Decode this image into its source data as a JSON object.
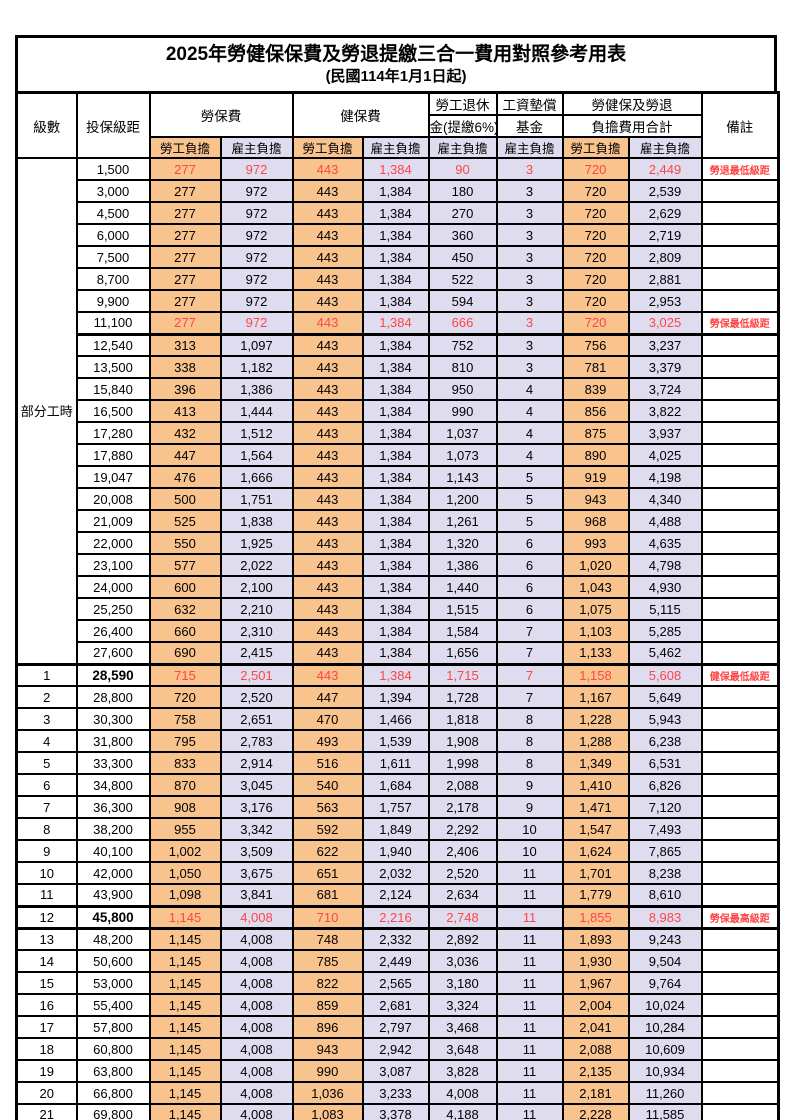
{
  "page": {
    "title": "2025年勞健保保費及勞退提繳三合一費用對照參考用表",
    "subtitle": "(民國114年1月1日起)"
  },
  "colors": {
    "employee_bg": "#F9C38D",
    "employer_bg": "#E0DCF0",
    "red_text": "#FF4545",
    "border_color": "#000000"
  },
  "header": {
    "level": "級數",
    "bracket": "投保級距",
    "labor_insurance": "勞保費",
    "health_insurance": "健保費",
    "pension_line1": "勞工退休",
    "pension_line2": "金(提繳6%)",
    "fund_line1": "工資墊償",
    "fund_line2": "基金",
    "total_line1": "勞健保及勞退",
    "total_line2": "負擔費用合計",
    "note": "備註",
    "employee": "勞工負擔",
    "employer": "雇主負擔"
  },
  "part_time": {
    "label": "部分工時",
    "span": 23
  },
  "rows": [
    {
      "level": "",
      "bracket": "1,500",
      "v": [
        "277",
        "972",
        "443",
        "1,384",
        "90",
        "3",
        "720",
        "2,449"
      ],
      "note": "勞退最低級距",
      "red": true,
      "bold": false
    },
    {
      "level": "",
      "bracket": "3,000",
      "v": [
        "277",
        "972",
        "443",
        "1,384",
        "180",
        "3",
        "720",
        "2,539"
      ],
      "note": "",
      "red": false,
      "bold": false
    },
    {
      "level": "",
      "bracket": "4,500",
      "v": [
        "277",
        "972",
        "443",
        "1,384",
        "270",
        "3",
        "720",
        "2,629"
      ],
      "note": "",
      "red": false,
      "bold": false
    },
    {
      "level": "",
      "bracket": "6,000",
      "v": [
        "277",
        "972",
        "443",
        "1,384",
        "360",
        "3",
        "720",
        "2,719"
      ],
      "note": "",
      "red": false,
      "bold": false
    },
    {
      "level": "",
      "bracket": "7,500",
      "v": [
        "277",
        "972",
        "443",
        "1,384",
        "450",
        "3",
        "720",
        "2,809"
      ],
      "note": "",
      "red": false,
      "bold": false
    },
    {
      "level": "",
      "bracket": "8,700",
      "v": [
        "277",
        "972",
        "443",
        "1,384",
        "522",
        "3",
        "720",
        "2,881"
      ],
      "note": "",
      "red": false,
      "bold": false
    },
    {
      "level": "",
      "bracket": "9,900",
      "v": [
        "277",
        "972",
        "443",
        "1,384",
        "594",
        "3",
        "720",
        "2,953"
      ],
      "note": "",
      "red": false,
      "bold": false
    },
    {
      "level": "",
      "bracket": "11,100",
      "v": [
        "277",
        "972",
        "443",
        "1,384",
        "666",
        "3",
        "720",
        "3,025"
      ],
      "note": "勞保最低級距",
      "red": true,
      "bold": false
    },
    {
      "level": "",
      "bracket": "12,540",
      "v": [
        "313",
        "1,097",
        "443",
        "1,384",
        "752",
        "3",
        "756",
        "3,237"
      ],
      "note": "",
      "red": false,
      "bold": false
    },
    {
      "level": "",
      "bracket": "13,500",
      "v": [
        "338",
        "1,182",
        "443",
        "1,384",
        "810",
        "3",
        "781",
        "3,379"
      ],
      "note": "",
      "red": false,
      "bold": false
    },
    {
      "level": "",
      "bracket": "15,840",
      "v": [
        "396",
        "1,386",
        "443",
        "1,384",
        "950",
        "4",
        "839",
        "3,724"
      ],
      "note": "",
      "red": false,
      "bold": false
    },
    {
      "level": "",
      "bracket": "16,500",
      "v": [
        "413",
        "1,444",
        "443",
        "1,384",
        "990",
        "4",
        "856",
        "3,822"
      ],
      "note": "",
      "red": false,
      "bold": false
    },
    {
      "level": "",
      "bracket": "17,280",
      "v": [
        "432",
        "1,512",
        "443",
        "1,384",
        "1,037",
        "4",
        "875",
        "3,937"
      ],
      "note": "",
      "red": false,
      "bold": false
    },
    {
      "level": "",
      "bracket": "17,880",
      "v": [
        "447",
        "1,564",
        "443",
        "1,384",
        "1,073",
        "4",
        "890",
        "4,025"
      ],
      "note": "",
      "red": false,
      "bold": false
    },
    {
      "level": "",
      "bracket": "19,047",
      "v": [
        "476",
        "1,666",
        "443",
        "1,384",
        "1,143",
        "5",
        "919",
        "4,198"
      ],
      "note": "",
      "red": false,
      "bold": false
    },
    {
      "level": "",
      "bracket": "20,008",
      "v": [
        "500",
        "1,751",
        "443",
        "1,384",
        "1,200",
        "5",
        "943",
        "4,340"
      ],
      "note": "",
      "red": false,
      "bold": false
    },
    {
      "level": "",
      "bracket": "21,009",
      "v": [
        "525",
        "1,838",
        "443",
        "1,384",
        "1,261",
        "5",
        "968",
        "4,488"
      ],
      "note": "",
      "red": false,
      "bold": false
    },
    {
      "level": "",
      "bracket": "22,000",
      "v": [
        "550",
        "1,925",
        "443",
        "1,384",
        "1,320",
        "6",
        "993",
        "4,635"
      ],
      "note": "",
      "red": false,
      "bold": false
    },
    {
      "level": "",
      "bracket": "23,100",
      "v": [
        "577",
        "2,022",
        "443",
        "1,384",
        "1,386",
        "6",
        "1,020",
        "4,798"
      ],
      "note": "",
      "red": false,
      "bold": false
    },
    {
      "level": "",
      "bracket": "24,000",
      "v": [
        "600",
        "2,100",
        "443",
        "1,384",
        "1,440",
        "6",
        "1,043",
        "4,930"
      ],
      "note": "",
      "red": false,
      "bold": false
    },
    {
      "level": "",
      "bracket": "25,250",
      "v": [
        "632",
        "2,210",
        "443",
        "1,384",
        "1,515",
        "6",
        "1,075",
        "5,115"
      ],
      "note": "",
      "red": false,
      "bold": false
    },
    {
      "level": "",
      "bracket": "26,400",
      "v": [
        "660",
        "2,310",
        "443",
        "1,384",
        "1,584",
        "7",
        "1,103",
        "5,285"
      ],
      "note": "",
      "red": false,
      "bold": false
    },
    {
      "level": "",
      "bracket": "27,600",
      "v": [
        "690",
        "2,415",
        "443",
        "1,384",
        "1,656",
        "7",
        "1,133",
        "5,462"
      ],
      "note": "",
      "red": false,
      "bold": false
    },
    {
      "level": "1",
      "bracket": "28,590",
      "v": [
        "715",
        "2,501",
        "443",
        "1,384",
        "1,715",
        "7",
        "1,158",
        "5,608"
      ],
      "note": "健保最低級距",
      "red": true,
      "bold": true
    },
    {
      "level": "2",
      "bracket": "28,800",
      "v": [
        "720",
        "2,520",
        "447",
        "1,394",
        "1,728",
        "7",
        "1,167",
        "5,649"
      ],
      "note": "",
      "red": false,
      "bold": false
    },
    {
      "level": "3",
      "bracket": "30,300",
      "v": [
        "758",
        "2,651",
        "470",
        "1,466",
        "1,818",
        "8",
        "1,228",
        "5,943"
      ],
      "note": "",
      "red": false,
      "bold": false
    },
    {
      "level": "4",
      "bracket": "31,800",
      "v": [
        "795",
        "2,783",
        "493",
        "1,539",
        "1,908",
        "8",
        "1,288",
        "6,238"
      ],
      "note": "",
      "red": false,
      "bold": false
    },
    {
      "level": "5",
      "bracket": "33,300",
      "v": [
        "833",
        "2,914",
        "516",
        "1,611",
        "1,998",
        "8",
        "1,349",
        "6,531"
      ],
      "note": "",
      "red": false,
      "bold": false
    },
    {
      "level": "6",
      "bracket": "34,800",
      "v": [
        "870",
        "3,045",
        "540",
        "1,684",
        "2,088",
        "9",
        "1,410",
        "6,826"
      ],
      "note": "",
      "red": false,
      "bold": false
    },
    {
      "level": "7",
      "bracket": "36,300",
      "v": [
        "908",
        "3,176",
        "563",
        "1,757",
        "2,178",
        "9",
        "1,471",
        "7,120"
      ],
      "note": "",
      "red": false,
      "bold": false
    },
    {
      "level": "8",
      "bracket": "38,200",
      "v": [
        "955",
        "3,342",
        "592",
        "1,849",
        "2,292",
        "10",
        "1,547",
        "7,493"
      ],
      "note": "",
      "red": false,
      "bold": false
    },
    {
      "level": "9",
      "bracket": "40,100",
      "v": [
        "1,002",
        "3,509",
        "622",
        "1,940",
        "2,406",
        "10",
        "1,624",
        "7,865"
      ],
      "note": "",
      "red": false,
      "bold": false
    },
    {
      "level": "10",
      "bracket": "42,000",
      "v": [
        "1,050",
        "3,675",
        "651",
        "2,032",
        "2,520",
        "11",
        "1,701",
        "8,238"
      ],
      "note": "",
      "red": false,
      "bold": false
    },
    {
      "level": "11",
      "bracket": "43,900",
      "v": [
        "1,098",
        "3,841",
        "681",
        "2,124",
        "2,634",
        "11",
        "1,779",
        "8,610"
      ],
      "note": "",
      "red": false,
      "bold": false
    },
    {
      "level": "12",
      "bracket": "45,800",
      "v": [
        "1,145",
        "4,008",
        "710",
        "2,216",
        "2,748",
        "11",
        "1,855",
        "8,983"
      ],
      "note": "勞保最高級距",
      "red": true,
      "bold": true
    },
    {
      "level": "13",
      "bracket": "48,200",
      "v": [
        "1,145",
        "4,008",
        "748",
        "2,332",
        "2,892",
        "11",
        "1,893",
        "9,243"
      ],
      "note": "",
      "red": false,
      "bold": false
    },
    {
      "level": "14",
      "bracket": "50,600",
      "v": [
        "1,145",
        "4,008",
        "785",
        "2,449",
        "3,036",
        "11",
        "1,930",
        "9,504"
      ],
      "note": "",
      "red": false,
      "bold": false
    },
    {
      "level": "15",
      "bracket": "53,000",
      "v": [
        "1,145",
        "4,008",
        "822",
        "2,565",
        "3,180",
        "11",
        "1,967",
        "9,764"
      ],
      "note": "",
      "red": false,
      "bold": false
    },
    {
      "level": "16",
      "bracket": "55,400",
      "v": [
        "1,145",
        "4,008",
        "859",
        "2,681",
        "3,324",
        "11",
        "2,004",
        "10,024"
      ],
      "note": "",
      "red": false,
      "bold": false
    },
    {
      "level": "17",
      "bracket": "57,800",
      "v": [
        "1,145",
        "4,008",
        "896",
        "2,797",
        "3,468",
        "11",
        "2,041",
        "10,284"
      ],
      "note": "",
      "red": false,
      "bold": false
    },
    {
      "level": "18",
      "bracket": "60,800",
      "v": [
        "1,145",
        "4,008",
        "943",
        "2,942",
        "3,648",
        "11",
        "2,088",
        "10,609"
      ],
      "note": "",
      "red": false,
      "bold": false
    },
    {
      "level": "19",
      "bracket": "63,800",
      "v": [
        "1,145",
        "4,008",
        "990",
        "3,087",
        "3,828",
        "11",
        "2,135",
        "10,934"
      ],
      "note": "",
      "red": false,
      "bold": false
    },
    {
      "level": "20",
      "bracket": "66,800",
      "v": [
        "1,145",
        "4,008",
        "1,036",
        "3,233",
        "4,008",
        "11",
        "2,181",
        "11,260"
      ],
      "note": "",
      "red": false,
      "bold": false
    },
    {
      "level": "21",
      "bracket": "69,800",
      "v": [
        "1,145",
        "4,008",
        "1,083",
        "3,378",
        "4,188",
        "11",
        "2,228",
        "11,585"
      ],
      "note": "",
      "red": false,
      "bold": false
    }
  ]
}
